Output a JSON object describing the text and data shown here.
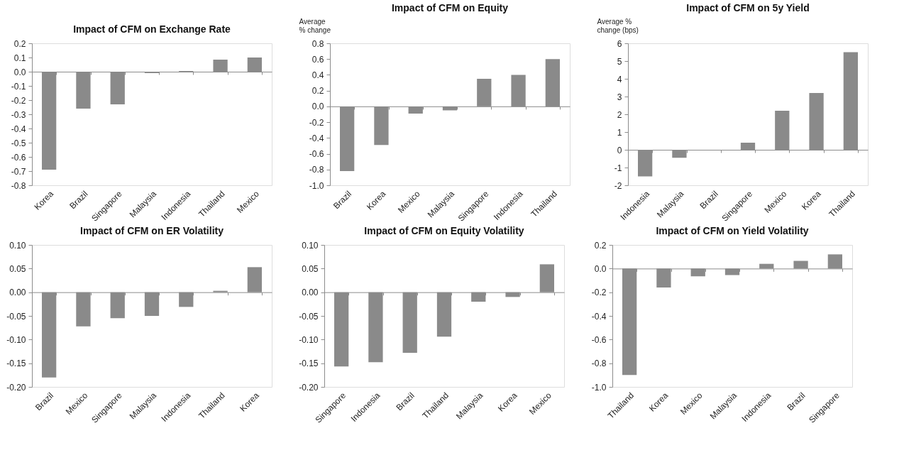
{
  "chart_data": [
    {
      "type": "bar",
      "title": "Impact of CFM on Exchange Rate",
      "categories": [
        "Korea",
        "Brazil",
        "Singapore",
        "Malaysia",
        "Indonesia",
        "Thailand",
        "Mexico"
      ],
      "values": [
        -0.69,
        -0.26,
        -0.23,
        -0.01,
        0.005,
        0.085,
        0.1
      ],
      "color": "#8a8a8a",
      "ylim": [
        -0.8,
        0.2
      ],
      "yticks": [
        0.2,
        0.1,
        {
          "value": 0,
          "label": "0.0"
        },
        -0.1,
        -0.2,
        -0.3,
        -0.4,
        -0.5,
        -0.6,
        -0.7,
        -0.8
      ]
    },
    {
      "type": "bar",
      "title": "Impact of CFM on Equity",
      "ylabel": "Average % change",
      "categories": [
        "Brazil",
        "Korea",
        "Mexico",
        "Malaysia",
        "Singapore",
        "Indonesia",
        "Thailand"
      ],
      "values": [
        -0.82,
        -0.49,
        -0.09,
        -0.05,
        0.35,
        0.4,
        0.6
      ],
      "color": "#8a8a8a",
      "ylim": [
        -1.0,
        0.8
      ],
      "yticks": [
        0.8,
        0.6,
        0.4,
        0.2,
        {
          "value": 0,
          "label": "0.0"
        },
        -0.2,
        -0.4,
        -0.6,
        -0.8,
        {
          "value": -1,
          "label": "-1.0"
        }
      ]
    },
    {
      "type": "bar",
      "title": "Impact of CFM on 5y Yield",
      "ylabel": "Average % change (bps)",
      "categories": [
        "Indonesia",
        "Malaysia",
        "Brazil",
        "Singapore",
        "Mexico",
        "Korea",
        "Thailand"
      ],
      "values": [
        -1.5,
        -0.45,
        0,
        0.4,
        2.2,
        3.2,
        5.5
      ],
      "color": "#8a8a8a",
      "ylim": [
        -2,
        6
      ],
      "yticks": [
        6,
        5,
        4,
        3,
        2,
        1,
        0,
        -1,
        -2
      ]
    },
    {
      "type": "bar",
      "title": "Impact of CFM on ER Volatility",
      "categories": [
        "Brazil",
        "Mexico",
        "Singapore",
        "Malaysia",
        "Indonesia",
        "Thailand",
        "Korea"
      ],
      "values": [
        -0.18,
        -0.072,
        -0.055,
        -0.05,
        -0.031,
        0.003,
        0.053
      ],
      "color": "#8a8a8a",
      "ylim": [
        -0.2,
        0.1
      ],
      "yticks": [
        {
          "value": 0.1,
          "label": "0.10"
        },
        0.05,
        {
          "value": 0,
          "label": "0.00"
        },
        -0.05,
        {
          "value": -0.1,
          "label": "-0.10"
        },
        -0.15,
        {
          "value": -0.2,
          "label": "-0.20"
        }
      ]
    },
    {
      "type": "bar",
      "title": "Impact of CFM on Equity Volatility",
      "categories": [
        "Singapore",
        "Indonesia",
        "Brazil",
        "Thailand",
        "Malaysia",
        "Korea",
        "Mexico"
      ],
      "values": [
        -0.157,
        -0.148,
        -0.128,
        -0.094,
        -0.02,
        -0.01,
        0.059
      ],
      "color": "#8a8a8a",
      "ylim": [
        -0.2,
        0.1
      ],
      "yticks": [
        {
          "value": 0.1,
          "label": "0.10"
        },
        0.05,
        {
          "value": 0,
          "label": "0.00"
        },
        -0.05,
        {
          "value": -0.1,
          "label": "-0.10"
        },
        -0.15,
        {
          "value": -0.2,
          "label": "-0.20"
        }
      ]
    },
    {
      "type": "bar",
      "title": "Impact of CFM on Yield Volatility",
      "categories": [
        "Thailand",
        "Korea",
        "Mexico",
        "Malaysia",
        "Indonesia",
        "Brazil",
        "Singapore"
      ],
      "values": [
        -0.9,
        -0.16,
        -0.065,
        -0.055,
        0.04,
        0.065,
        0.12
      ],
      "color": "#8a8a8a",
      "ylim": [
        -1.0,
        0.2
      ],
      "yticks": [
        0.2,
        {
          "value": 0,
          "label": "0.0"
        },
        -0.2,
        -0.4,
        -0.6,
        -0.8,
        {
          "value": -1,
          "label": "-1.0"
        }
      ]
    }
  ]
}
